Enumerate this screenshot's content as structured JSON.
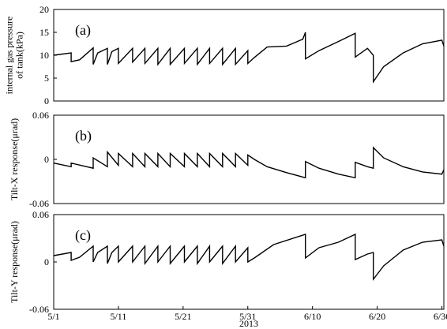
{
  "chart_data": [
    {
      "type": "line",
      "annotation": "(a)",
      "ylabel": [
        "internal gas pressure",
        "of tank(kPa)"
      ],
      "color": "#000000",
      "xlim": [
        0,
        60.3
      ],
      "ylim": [
        0,
        20
      ],
      "yticks": [
        0,
        5,
        10,
        15,
        20
      ],
      "x": [
        0,
        2.7,
        2.7,
        4,
        6.1,
        6.1,
        6.8,
        8.3,
        8.3,
        9,
        10,
        10,
        12.2,
        12.2,
        14.1,
        14.1,
        16.1,
        16.1,
        18,
        18,
        20.2,
        20.2,
        22.2,
        22.2,
        24.1,
        24.1,
        26.1,
        26.1,
        28.1,
        28.1,
        30,
        30,
        31,
        33,
        36,
        38.5,
        38.9,
        38.9,
        41,
        44,
        46.6,
        46.6,
        48.5,
        49.4,
        49.4,
        51,
        54,
        57,
        60,
        60.3
      ],
      "values": [
        10,
        10.5,
        8.6,
        9,
        11.6,
        8,
        10.5,
        11.5,
        8,
        10.8,
        11.5,
        8.2,
        11.5,
        8.5,
        11.5,
        8.2,
        11.5,
        8,
        11.5,
        8,
        11.5,
        8.2,
        11.5,
        8,
        11.5,
        8.2,
        11.5,
        8,
        11.5,
        8,
        11,
        8.2,
        9.5,
        11.8,
        12,
        13.5,
        15,
        9.2,
        11,
        13,
        14.8,
        9.6,
        11.5,
        10,
        4.2,
        7.5,
        10.5,
        12.5,
        13.3,
        12
      ]
    },
    {
      "type": "line",
      "annotation": "(b)",
      "ylabel": [
        "Tilt-X response(μrad)"
      ],
      "color": "#000000",
      "xlim": [
        0,
        60.3
      ],
      "ylim": [
        -0.06,
        0.06
      ],
      "yticks": [
        -0.06,
        0,
        0.06
      ],
      "x": [
        0,
        2.7,
        2.7,
        6.1,
        6.1,
        8.3,
        8.3,
        10,
        10,
        12.2,
        12.2,
        14.1,
        14.1,
        16.1,
        16.1,
        18,
        18,
        20.2,
        20.2,
        22.2,
        22.2,
        24.1,
        24.1,
        26.1,
        26.1,
        28.1,
        28.1,
        30,
        30,
        31,
        33,
        36,
        38.9,
        38.9,
        41,
        44,
        46.6,
        46.6,
        48.5,
        49.4,
        49.4,
        51,
        54,
        57,
        60,
        60.3
      ],
      "values": [
        -0.005,
        -0.01,
        -0.005,
        -0.012,
        0.002,
        -0.01,
        0.01,
        -0.008,
        0.008,
        -0.01,
        0.008,
        -0.01,
        0.008,
        -0.01,
        0.008,
        -0.01,
        0.008,
        -0.01,
        0.008,
        -0.01,
        0.008,
        -0.01,
        0.008,
        -0.01,
        0.008,
        -0.01,
        0.008,
        -0.008,
        0.006,
        0,
        -0.01,
        -0.018,
        -0.025,
        -0.003,
        -0.012,
        -0.02,
        -0.025,
        -0.004,
        -0.01,
        -0.012,
        0.016,
        0.002,
        -0.01,
        -0.017,
        -0.02,
        -0.014
      ]
    },
    {
      "type": "line",
      "annotation": "(c)",
      "ylabel": [
        "Tilt-Y response(μrad)"
      ],
      "xlabel": "2013",
      "color": "#000000",
      "xlim": [
        0,
        60.3
      ],
      "ylim": [
        -0.06,
        0.06
      ],
      "yticks": [
        -0.06,
        0,
        0.06
      ],
      "xticks": [
        {
          "value": 0,
          "label": "5/1"
        },
        {
          "value": 10,
          "label": "5/11"
        },
        {
          "value": 20,
          "label": "5/21"
        },
        {
          "value": 30,
          "label": "5/31"
        },
        {
          "value": 40,
          "label": "6/10"
        },
        {
          "value": 50,
          "label": "6/20"
        },
        {
          "value": 60,
          "label": "6/30"
        }
      ],
      "x": [
        0,
        2.7,
        2.7,
        4,
        6.1,
        6.1,
        6.8,
        8.3,
        8.3,
        9,
        10,
        10,
        12.2,
        12.2,
        14.1,
        14.1,
        16.1,
        16.1,
        18,
        18,
        20.2,
        20.2,
        22.2,
        22.2,
        24.1,
        24.1,
        26.1,
        26.1,
        28.1,
        28.1,
        30,
        30,
        31,
        34,
        38.9,
        38.9,
        41,
        44,
        46.6,
        46.6,
        48.5,
        49.4,
        49.4,
        51,
        54,
        57,
        60,
        60.3
      ],
      "values": [
        0.008,
        0.012,
        0.002,
        0.006,
        0.02,
        0,
        0.012,
        0.02,
        -0.002,
        0.012,
        0.02,
        0,
        0.02,
        0,
        0.02,
        -0.002,
        0.02,
        0,
        0.02,
        -0.002,
        0.02,
        0,
        0.02,
        -0.002,
        0.02,
        0,
        0.02,
        -0.002,
        0.02,
        0,
        0.018,
        0,
        0.005,
        0.022,
        0.035,
        0.005,
        0.018,
        0.025,
        0.035,
        0.003,
        0.01,
        0.012,
        -0.022,
        -0.005,
        0.015,
        0.025,
        0.028,
        0.02
      ]
    }
  ]
}
